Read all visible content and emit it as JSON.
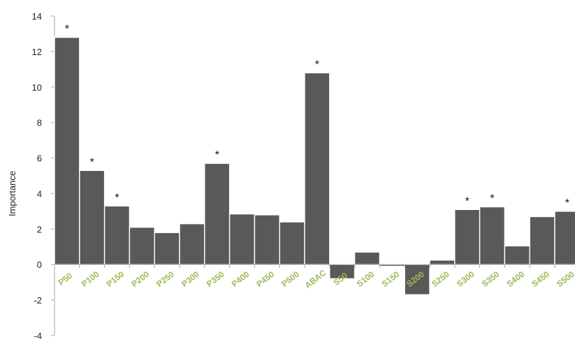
{
  "chart_data": {
    "type": "bar",
    "ylabel": "Importance",
    "ylim": [
      -4,
      14
    ],
    "yticks": [
      14,
      12,
      10,
      8,
      6,
      4,
      2,
      0,
      -2,
      -4
    ],
    "categories": [
      "P50",
      "P100",
      "P150",
      "P200",
      "P250",
      "P300",
      "P350",
      "P400",
      "P450",
      "P500",
      "ABAC",
      "S50",
      "S100",
      "S150",
      "S200",
      "S250",
      "S300",
      "S350",
      "S400",
      "S450",
      "S500"
    ],
    "values": [
      12.8,
      5.3,
      3.3,
      2.1,
      1.8,
      2.3,
      5.7,
      2.85,
      2.8,
      2.4,
      10.8,
      -0.8,
      0.7,
      -0.1,
      -1.7,
      0.25,
      3.1,
      3.25,
      1.05,
      2.7,
      3.0
    ],
    "significance": [
      "*",
      "*",
      "*",
      "",
      "",
      "",
      "*",
      "",
      "",
      "",
      "*",
      "",
      "",
      "",
      "",
      "",
      "*",
      "*",
      "",
      "",
      "*"
    ],
    "grid": false,
    "colors": {
      "bar": "#595959",
      "bar_edge": "#ffffff",
      "category_label": "#9bbb59",
      "axis": "#a6a6a6"
    }
  }
}
